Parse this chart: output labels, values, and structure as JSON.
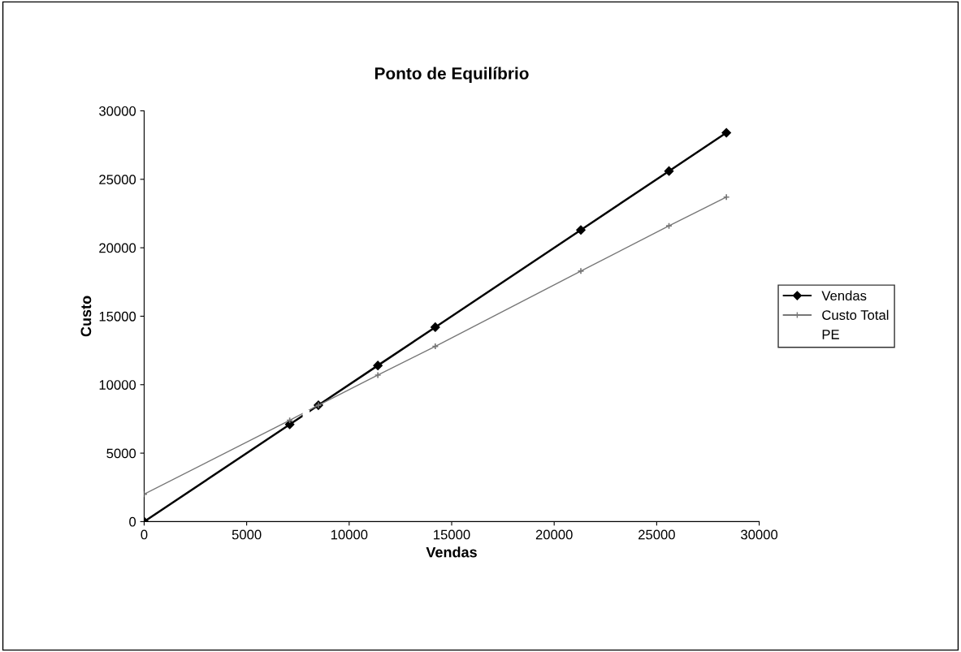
{
  "chart_data": {
    "type": "line",
    "title": "Ponto de Equilíbrio",
    "xlabel": "Vendas",
    "ylabel": "Custo",
    "xlim": [
      0,
      30000
    ],
    "xticks": [
      0,
      5000,
      10000,
      15000,
      20000,
      25000,
      30000
    ],
    "ylim": [
      0,
      30000
    ],
    "yticks": [
      0,
      5000,
      10000,
      15000,
      20000,
      25000,
      30000
    ],
    "grid": false,
    "legend": "right",
    "series": [
      {
        "name": "Vendas",
        "color": "#000000",
        "marker": "diamond",
        "line_style": "solid",
        "x": [
          0,
          7100,
          8500,
          11400,
          14200,
          21300,
          25600,
          28400
        ],
        "values": [
          0,
          7100,
          8500,
          11400,
          14200,
          21300,
          25600,
          28400
        ]
      },
      {
        "name": "Custo Total",
        "color": "#777777",
        "marker": "cross",
        "line_style": "solid",
        "x": [
          0,
          7100,
          8500,
          11400,
          14200,
          21300,
          25600,
          28400
        ],
        "values": [
          2000,
          7400,
          8500,
          10700,
          12800,
          18300,
          21600,
          23700
        ]
      },
      {
        "name": "PE",
        "color": "#ffffff",
        "marker": "square",
        "line_style": "solid",
        "x": [
          7900
        ],
        "values": [
          7900
        ]
      }
    ]
  }
}
